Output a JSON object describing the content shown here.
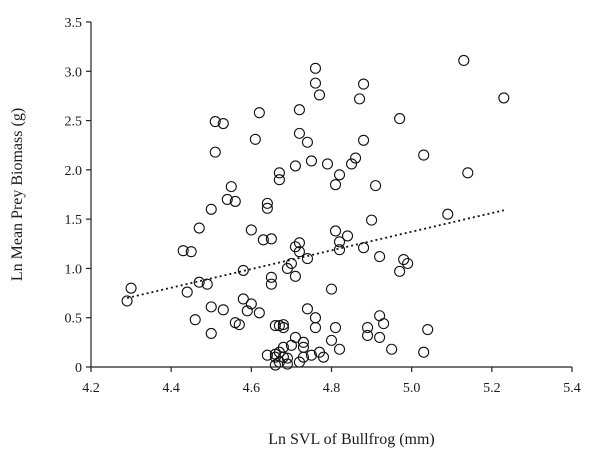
{
  "chart_data": {
    "type": "scatter",
    "title": "",
    "xlabel": "Ln SVL of Bullfrog  (mm)",
    "ylabel": "Ln Mean Prey Biomass  (g)",
    "xlim": [
      4.2,
      5.4
    ],
    "ylim": [
      0,
      3.5
    ],
    "xticks": [
      "4.2",
      "4.4",
      "4.6",
      "4.8",
      "5.0",
      "5.2",
      "5.4"
    ],
    "yticks": [
      "0",
      "0.5",
      "1.0",
      "1.5",
      "2.0",
      "2.5",
      "3.0",
      "3.5"
    ],
    "grid": false,
    "legend": "none",
    "trendline": {
      "style": "dotted",
      "x": [
        4.29,
        5.23
      ],
      "y": [
        0.7,
        1.59
      ]
    },
    "points": [
      [
        4.29,
        0.67
      ],
      [
        4.3,
        0.8
      ],
      [
        4.43,
        1.18
      ],
      [
        4.44,
        0.76
      ],
      [
        4.45,
        1.17
      ],
      [
        4.46,
        0.48
      ],
      [
        4.47,
        1.41
      ],
      [
        4.47,
        0.86
      ],
      [
        4.49,
        0.84
      ],
      [
        4.5,
        0.34
      ],
      [
        4.5,
        0.61
      ],
      [
        4.5,
        1.6
      ],
      [
        4.51,
        2.18
      ],
      [
        4.51,
        2.49
      ],
      [
        4.53,
        2.47
      ],
      [
        4.53,
        0.58
      ],
      [
        4.54,
        1.7
      ],
      [
        4.55,
        1.83
      ],
      [
        4.56,
        1.68
      ],
      [
        4.56,
        0.45
      ],
      [
        4.57,
        0.43
      ],
      [
        4.58,
        0.69
      ],
      [
        4.58,
        0.98
      ],
      [
        4.59,
        0.57
      ],
      [
        4.6,
        0.64
      ],
      [
        4.6,
        1.39
      ],
      [
        4.61,
        2.31
      ],
      [
        4.62,
        2.58
      ],
      [
        4.62,
        0.55
      ],
      [
        4.63,
        1.29
      ],
      [
        4.64,
        1.66
      ],
      [
        4.64,
        1.61
      ],
      [
        4.64,
        0.12
      ],
      [
        4.65,
        1.3
      ],
      [
        4.65,
        0.84
      ],
      [
        4.65,
        0.91
      ],
      [
        4.66,
        0.13
      ],
      [
        4.66,
        0.42
      ],
      [
        4.66,
        0.02
      ],
      [
        4.66,
        0.1
      ],
      [
        4.67,
        1.9
      ],
      [
        4.67,
        1.97
      ],
      [
        4.67,
        0.05
      ],
      [
        4.67,
        0.15
      ],
      [
        4.67,
        0.42
      ],
      [
        4.68,
        0.4
      ],
      [
        4.68,
        0.43
      ],
      [
        4.68,
        0.2
      ],
      [
        4.68,
        0.1
      ],
      [
        4.69,
        1.0
      ],
      [
        4.69,
        0.09
      ],
      [
        4.69,
        0.03
      ],
      [
        4.7,
        0.22
      ],
      [
        4.7,
        1.05
      ],
      [
        4.71,
        1.22
      ],
      [
        4.71,
        2.04
      ],
      [
        4.71,
        0.92
      ],
      [
        4.71,
        0.3
      ],
      [
        4.72,
        2.37
      ],
      [
        4.72,
        2.61
      ],
      [
        4.72,
        1.26
      ],
      [
        4.72,
        1.17
      ],
      [
        4.72,
        0.05
      ],
      [
        4.73,
        0.1
      ],
      [
        4.73,
        0.2
      ],
      [
        4.73,
        0.25
      ],
      [
        4.74,
        2.28
      ],
      [
        4.74,
        1.1
      ],
      [
        4.74,
        0.59
      ],
      [
        4.75,
        2.09
      ],
      [
        4.75,
        0.12
      ],
      [
        4.76,
        3.03
      ],
      [
        4.76,
        2.88
      ],
      [
        4.76,
        0.5
      ],
      [
        4.76,
        0.4
      ],
      [
        4.77,
        2.76
      ],
      [
        4.77,
        0.15
      ],
      [
        4.78,
        0.1
      ],
      [
        4.79,
        2.06
      ],
      [
        4.8,
        0.27
      ],
      [
        4.8,
        0.79
      ],
      [
        4.81,
        1.85
      ],
      [
        4.81,
        1.38
      ],
      [
        4.81,
        0.4
      ],
      [
        4.82,
        1.27
      ],
      [
        4.82,
        1.19
      ],
      [
        4.82,
        0.18
      ],
      [
        4.82,
        1.95
      ],
      [
        4.84,
        1.33
      ],
      [
        4.85,
        2.06
      ],
      [
        4.86,
        2.12
      ],
      [
        4.87,
        2.72
      ],
      [
        4.88,
        2.87
      ],
      [
        4.88,
        2.3
      ],
      [
        4.88,
        1.21
      ],
      [
        4.89,
        0.32
      ],
      [
        4.89,
        0.4
      ],
      [
        4.9,
        1.49
      ],
      [
        4.91,
        1.84
      ],
      [
        4.92,
        1.12
      ],
      [
        4.92,
        0.52
      ],
      [
        4.92,
        0.3
      ],
      [
        4.93,
        0.44
      ],
      [
        4.95,
        0.18
      ],
      [
        4.97,
        2.52
      ],
      [
        4.97,
        0.97
      ],
      [
        4.98,
        1.09
      ],
      [
        4.99,
        1.05
      ],
      [
        5.03,
        0.15
      ],
      [
        5.03,
        2.15
      ],
      [
        5.04,
        0.38
      ],
      [
        5.09,
        1.55
      ],
      [
        5.13,
        3.11
      ],
      [
        5.14,
        1.97
      ],
      [
        5.23,
        2.73
      ]
    ]
  }
}
